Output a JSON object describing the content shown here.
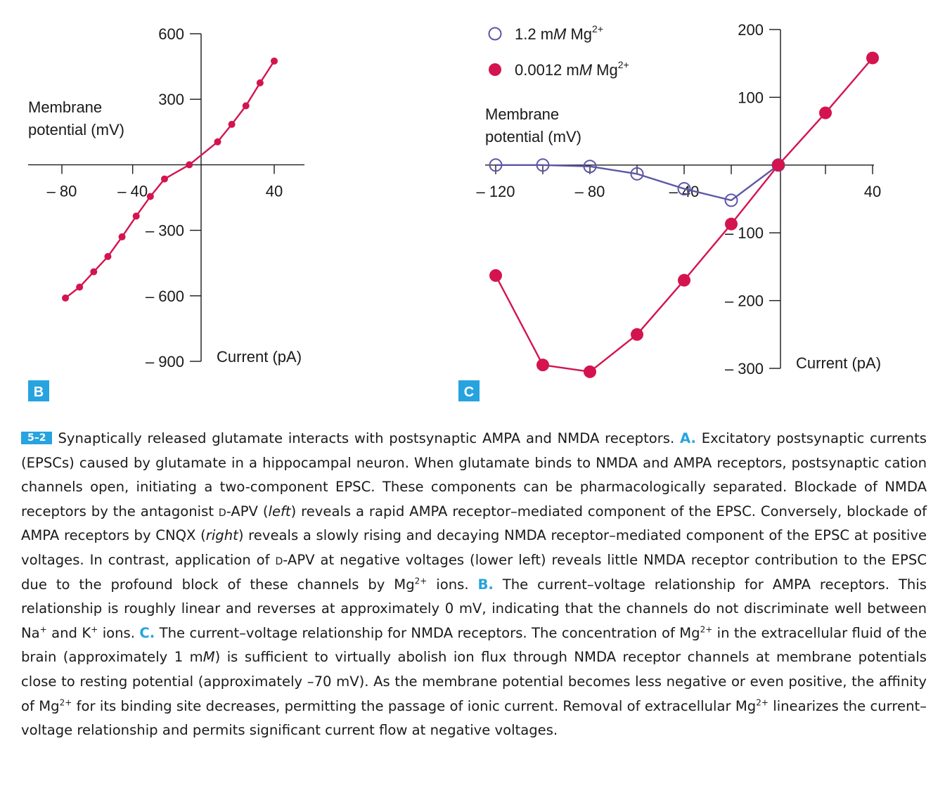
{
  "colors": {
    "accent_blue": "#27a3df",
    "series_red": "#d3144f",
    "series_purple": "#5b56a6",
    "axis": "#1a1a1a"
  },
  "chart_data": [
    {
      "panel": "B",
      "type": "line",
      "xlabel": "Current (pA)",
      "ylabel": "Membrane potential (mV)",
      "xlim": [
        -80,
        40
      ],
      "ylim": [
        -900,
        600
      ],
      "x_ticks": [
        -80,
        -40,
        40
      ],
      "x_tick_labels": [
        "– 80",
        "– 40",
        "40"
      ],
      "y_ticks": [
        600,
        300,
        -300,
        -600,
        -900
      ],
      "y_tick_labels": [
        "600",
        "300",
        "– 300",
        "– 600",
        "– 900"
      ],
      "series": [
        {
          "marker": "filled",
          "color": "#d3144f",
          "points": [
            [
              -78,
              -610
            ],
            [
              -70,
              -560
            ],
            [
              -62,
              -490
            ],
            [
              -54,
              -420
            ],
            [
              -46,
              -330
            ],
            [
              -38,
              -235
            ],
            [
              -30,
              -145
            ],
            [
              -22,
              -65
            ],
            [
              -8,
              0
            ],
            [
              8,
              105
            ],
            [
              16,
              185
            ],
            [
              24,
              270
            ],
            [
              32,
              375
            ],
            [
              40,
              475
            ]
          ]
        }
      ]
    },
    {
      "panel": "C",
      "type": "line",
      "xlabel": "Current (pA)",
      "ylabel": "Membrane potential (mV)",
      "xlim": [
        -120,
        40
      ],
      "ylim": [
        -300,
        200
      ],
      "x_ticks": [
        -120,
        -80,
        -40,
        40
      ],
      "x_tick_labels": [
        "– 120",
        "– 80",
        "– 40",
        "40"
      ],
      "y_ticks": [
        200,
        100,
        -100,
        -200,
        -300
      ],
      "y_tick_labels": [
        "200",
        "100",
        "– 100",
        "– 200",
        "– 300"
      ],
      "legend": "top-left",
      "series": [
        {
          "name_parts": [
            "1.2 m",
            "M",
            " Mg",
            "2+"
          ],
          "marker": "open",
          "color": "#5b56a6",
          "points": [
            [
              -120,
              0
            ],
            [
              -100,
              0
            ],
            [
              -80,
              -2
            ],
            [
              -60,
              -13
            ],
            [
              -40,
              -35
            ],
            [
              -20,
              -52
            ],
            [
              0,
              0
            ]
          ]
        },
        {
          "name_parts": [
            "0.0012 m",
            "M",
            " Mg",
            "2+"
          ],
          "marker": "filled",
          "color": "#d3144f",
          "points": [
            [
              -120,
              -163
            ],
            [
              -100,
              -295
            ],
            [
              -80,
              -305
            ],
            [
              -60,
              -250
            ],
            [
              -40,
              -170
            ],
            [
              -20,
              -87
            ],
            [
              0,
              0
            ],
            [
              20,
              77
            ],
            [
              40,
              158
            ]
          ]
        }
      ]
    }
  ],
  "figure": {
    "panel_b_label": "B",
    "panel_c_label": "C",
    "b_ylabel_line1": "Membrane",
    "b_ylabel_line2": "potential (mV)",
    "b_xlabel": "Current (pA)",
    "c_ylabel_line1": "Membrane",
    "c_ylabel_line2": "potential (mV)",
    "c_xlabel": "Current (pA)"
  },
  "caption": {
    "fig_number": "5–2",
    "part_a": "A.",
    "part_b": "B.",
    "part_c": "C.",
    "t01": "Synaptically released glutamate interacts with postsynaptic AMPA and NMDA receptors.",
    "t02": "Excitatory postsynaptic currents (EPSCs) caused by glutamate in a hippocampal neuron. When glutamate binds to NMDA and AMPA receptors, postsynaptic cation channels open, initiating a two-component EPSC. These components can be pharmacologically separated. Blockade of NMDA receptors by the antagonist",
    "d1": "d",
    "t03": "-APV (",
    "left": "left",
    "t04": ") reveals a rapid AMPA receptor–mediated component of the EPSC. Conversely, blockade of AMPA receptors by CNQX (",
    "right": "right",
    "t05": ") reveals a slowly rising and decaying NMDA receptor–mediated component of the EPSC at positive voltages. In contrast, application of",
    "d2": "d",
    "t06": "-APV at negative voltages (lower left) reveals little NMDA receptor contribution to the EPSC due to the profound block of these channels by Mg",
    "sup_2plus": "2+",
    "t07": " ions.",
    "t08": "The current–voltage relationship for AMPA receptors. This relationship is roughly linear and reverses at approximately 0 mV, indicating that the channels do not discriminate well between Na",
    "sup_plus": "+",
    "t09": " and K",
    "t10": " ions.",
    "t11": "The current–voltage relationship for NMDA receptors. The concentration of Mg",
    "t12": " in the extracellular fluid of the brain (approximately 1 m",
    "M": "M",
    "t13": ") is sufficient to virtually abolish ion flux through NMDA receptor channels at membrane potentials close to resting potential (approximately –70 mV). As the membrane potential becomes less negative or even positive, the affinity of Mg",
    "t14": " for its binding site decreases, permitting the passage of ionic current. Removal of extracellular Mg",
    "t15": " linearizes the current–voltage relationship and permits significant current flow at negative voltages."
  }
}
